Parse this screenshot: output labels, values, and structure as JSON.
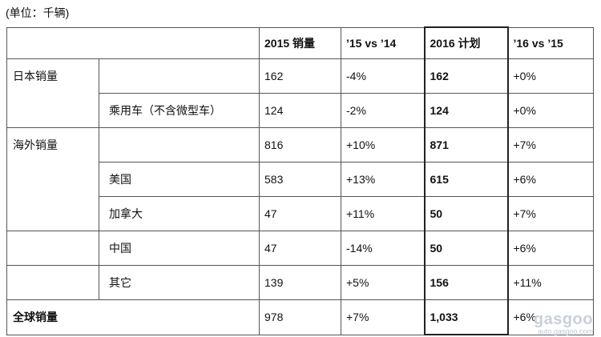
{
  "unit_label": "(单位：千辆)",
  "header": {
    "c0": "",
    "c1": "",
    "c2": "2015 销量",
    "c3": "’15 vs ’14",
    "c4": "2016 计划",
    "c5": "’16 vs ’15"
  },
  "rows": [
    {
      "cat": "日本销量",
      "sub": "",
      "sales2015": "162",
      "chg1514": "-4%",
      "plan2016": "162",
      "chg1615": "+0%"
    },
    {
      "cat": "",
      "sub": "乘用车（不含微型车）",
      "sales2015": "124",
      "chg1514": "-2%",
      "plan2016": "124",
      "chg1615": "+0%"
    },
    {
      "cat": "海外销量",
      "sub": "",
      "sales2015": "816",
      "chg1514": "+10%",
      "plan2016": "871",
      "chg1615": "+7%"
    },
    {
      "cat": "",
      "sub": "美国",
      "sales2015": "583",
      "chg1514": "+13%",
      "plan2016": "615",
      "chg1615": "+6%"
    },
    {
      "cat": "",
      "sub": "加拿大",
      "sales2015": "47",
      "chg1514": "+11%",
      "plan2016": "50",
      "chg1615": "+7%"
    },
    {
      "cat": "",
      "sub": "中国",
      "sales2015": "47",
      "chg1514": "-14%",
      "plan2016": "50",
      "chg1615": "+6%"
    },
    {
      "cat": "",
      "sub": "其它",
      "sales2015": "139",
      "chg1514": "+5%",
      "plan2016": "156",
      "chg1615": "+11%"
    }
  ],
  "total": {
    "label": "全球销量",
    "sales2015": "978",
    "chg1514": "+7%",
    "plan2016": "1,033",
    "chg1615": "+6%"
  },
  "watermark": {
    "logo": "gasgoo",
    "url": "auto.gasgoo.com"
  }
}
